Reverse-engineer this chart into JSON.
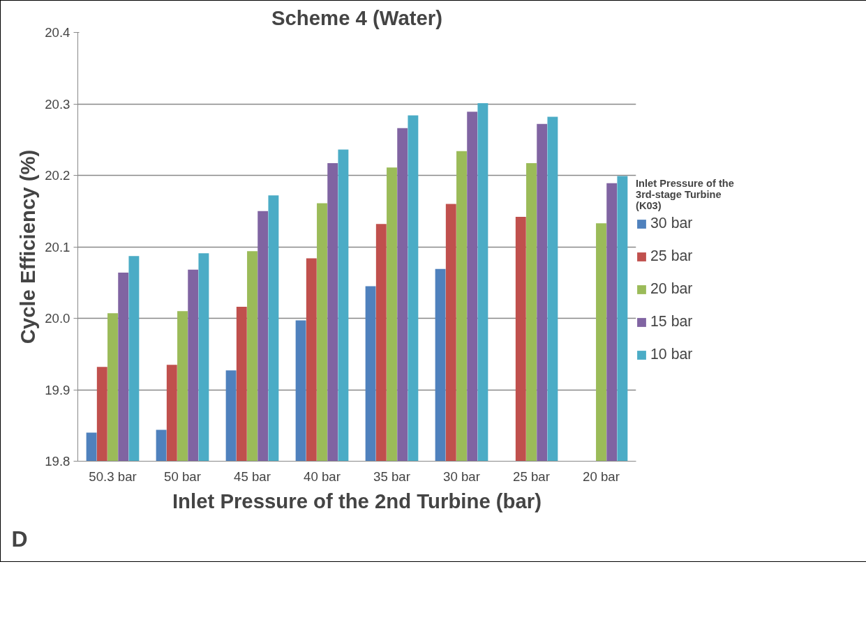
{
  "chart_data": {
    "type": "bar",
    "title": "Scheme 4 (Water)",
    "xlabel": "Inlet Pressure of the 2nd Turbine (bar)",
    "ylabel": "Cycle Efficiency (%)",
    "legend_title": "Inlet Pressure of the 3rd-stage Turbine (K03)",
    "categories": [
      "50.3 bar",
      "50 bar",
      "45 bar",
      "40 bar",
      "35 bar",
      "30 bar",
      "25 bar",
      "20 bar"
    ],
    "series": [
      {
        "name": "30 bar",
        "color": "#4f81bd",
        "values": [
          19.84,
          19.844,
          19.927,
          19.997,
          20.045,
          20.069,
          null,
          null
        ]
      },
      {
        "name": "25 bar",
        "color": "#c0504d",
        "values": [
          19.932,
          19.935,
          20.016,
          20.084,
          20.132,
          20.16,
          20.142,
          null
        ]
      },
      {
        "name": "20 bar",
        "color": "#9bbb59",
        "values": [
          20.007,
          20.01,
          20.094,
          20.161,
          20.211,
          20.234,
          20.217,
          20.133
        ]
      },
      {
        "name": "15 bar",
        "color": "#8064a2",
        "values": [
          20.064,
          20.068,
          20.15,
          20.217,
          20.266,
          20.289,
          20.272,
          20.189
        ]
      },
      {
        "name": "10 bar",
        "color": "#4bacc6",
        "values": [
          20.087,
          20.091,
          20.172,
          20.236,
          20.284,
          20.301,
          20.282,
          20.199
        ]
      }
    ],
    "ylim": [
      19.8,
      20.4
    ],
    "yticks": [
      {
        "value": 19.8,
        "label": "19.8"
      },
      {
        "value": 19.9,
        "label": "19.9"
      },
      {
        "value": 20.0,
        "label": "20.0"
      },
      {
        "value": 20.1,
        "label": "20.1"
      },
      {
        "value": 20.2,
        "label": "20.2"
      },
      {
        "value": 20.3,
        "label": "20.3"
      },
      {
        "value": 20.4,
        "label": "20.4"
      }
    ],
    "grid": "y",
    "legend": "right",
    "annotations": [
      "D"
    ]
  }
}
